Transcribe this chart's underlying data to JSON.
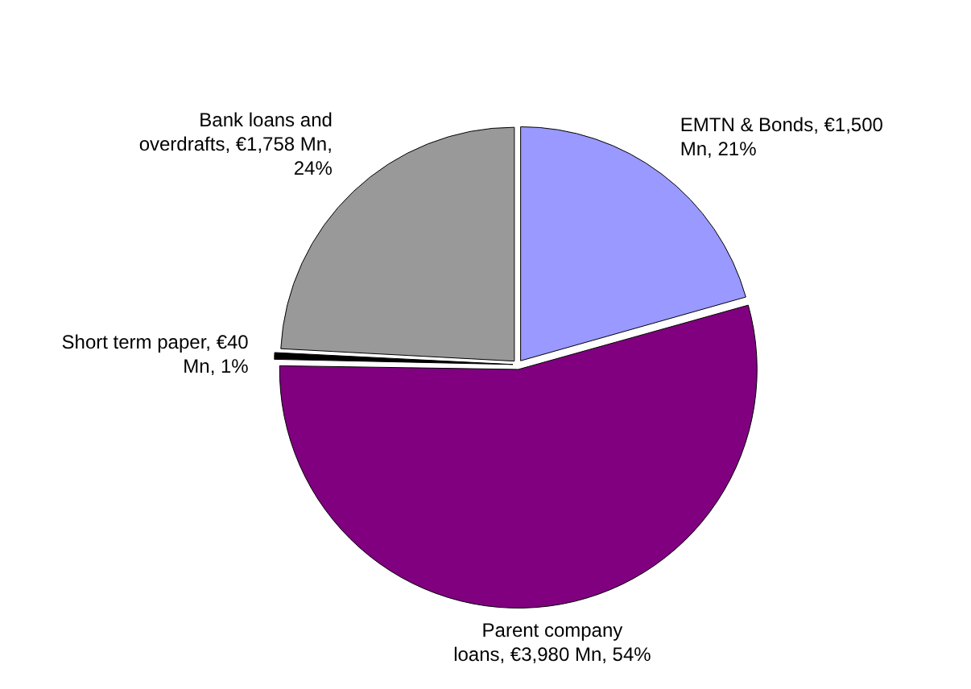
{
  "chart_data": {
    "type": "pie",
    "categories": [
      "EMTN & Bonds",
      "Parent company loans",
      "Short term paper",
      "Bank loans and overdrafts"
    ],
    "values": [
      1500,
      3980,
      40,
      1758
    ],
    "value_labels": [
      "€1,500 Mn, 21%",
      "€3,980 Mn, 54%",
      "€40 Mn, 1%",
      "€1,758 Mn, 24%"
    ],
    "colors": [
      "#9999ff",
      "#800080",
      "#000000",
      "#999999"
    ],
    "legend": false
  }
}
